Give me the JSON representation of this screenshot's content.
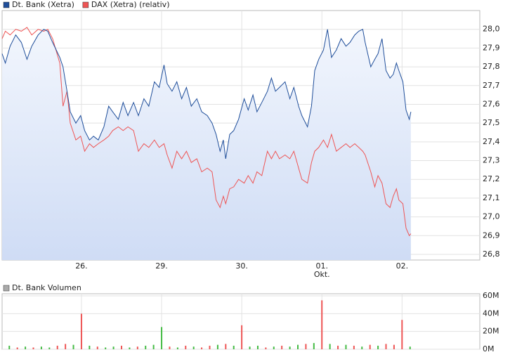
{
  "chart_data": [
    {
      "type": "line",
      "x": [
        -0.99,
        -0.95,
        -0.89,
        -0.82,
        -0.75,
        -0.68,
        -0.62,
        -0.54,
        -0.47,
        -0.42,
        -0.36,
        -0.27,
        -0.23,
        -0.18,
        -0.14,
        -0.07,
        -0.01,
        0.04,
        0.1,
        0.15,
        0.21,
        0.28,
        0.34,
        0.39,
        0.46,
        0.52,
        0.58,
        0.65,
        0.71,
        0.78,
        0.84,
        0.91,
        0.97,
        1.03,
        1.07,
        1.13,
        1.19,
        1.25,
        1.31,
        1.37,
        1.44,
        1.5,
        1.57,
        1.63,
        1.68,
        1.73,
        1.77,
        1.8,
        1.85,
        1.9,
        1.96,
        2.03,
        2.08,
        2.14,
        2.19,
        2.25,
        2.32,
        2.37,
        2.42,
        2.47,
        2.54,
        2.6,
        2.65,
        2.71,
        2.75,
        2.82,
        2.87,
        2.91,
        2.96,
        3.02,
        3.07,
        3.12,
        3.18,
        3.24,
        3.3,
        3.35,
        3.41,
        3.46,
        3.51,
        3.54,
        3.61,
        3.66,
        3.7,
        3.75,
        3.8,
        3.85,
        3.89,
        3.93,
        3.96,
        4.01,
        4.05,
        4.09,
        4.11
      ],
      "series": [
        {
          "name": "Dt. Bank (Xetra)",
          "color": "#1f4e9a",
          "values": [
            27.87,
            27.82,
            27.91,
            27.97,
            27.93,
            27.84,
            27.91,
            27.97,
            28.0,
            27.99,
            27.93,
            27.85,
            27.8,
            27.67,
            27.56,
            27.5,
            27.54,
            27.46,
            27.41,
            27.43,
            27.41,
            27.48,
            27.59,
            27.56,
            27.52,
            27.61,
            27.54,
            27.61,
            27.54,
            27.63,
            27.59,
            27.72,
            27.69,
            27.81,
            27.71,
            27.67,
            27.72,
            27.63,
            27.69,
            27.59,
            27.63,
            27.56,
            27.54,
            27.5,
            27.44,
            27.35,
            27.41,
            27.31,
            27.44,
            27.46,
            27.52,
            27.63,
            27.57,
            27.65,
            27.56,
            27.61,
            27.67,
            27.74,
            27.67,
            27.69,
            27.72,
            27.63,
            27.69,
            27.59,
            27.54,
            27.48,
            27.59,
            27.78,
            27.84,
            27.89,
            28.0,
            27.85,
            27.89,
            27.95,
            27.91,
            27.93,
            27.97,
            27.99,
            28.0,
            27.93,
            27.8,
            27.84,
            27.87,
            27.95,
            27.78,
            27.74,
            27.76,
            27.82,
            27.78,
            27.72,
            27.57,
            27.52,
            27.56
          ]
        },
        {
          "name": "DAX (Xetra) (relativ)",
          "color": "#ee5555",
          "values": [
            27.95,
            27.99,
            27.97,
            28.0,
            27.99,
            28.01,
            27.97,
            28.0,
            27.99,
            28.0,
            27.95,
            27.82,
            27.59,
            27.67,
            27.5,
            27.41,
            27.43,
            27.35,
            27.39,
            27.37,
            27.39,
            27.41,
            27.43,
            27.46,
            27.48,
            27.46,
            27.48,
            27.46,
            27.35,
            27.39,
            27.37,
            27.41,
            27.37,
            27.39,
            27.33,
            27.26,
            27.35,
            27.31,
            27.35,
            27.29,
            27.31,
            27.24,
            27.26,
            27.24,
            27.09,
            27.05,
            27.11,
            27.07,
            27.15,
            27.16,
            27.2,
            27.18,
            27.22,
            27.18,
            27.24,
            27.22,
            27.35,
            27.31,
            27.35,
            27.31,
            27.33,
            27.31,
            27.35,
            27.26,
            27.2,
            27.18,
            27.29,
            27.35,
            27.37,
            27.41,
            27.37,
            27.44,
            27.35,
            27.37,
            27.39,
            27.37,
            27.39,
            27.37,
            27.35,
            27.33,
            27.24,
            27.16,
            27.22,
            27.18,
            27.07,
            27.05,
            27.11,
            27.15,
            27.09,
            27.07,
            26.94,
            26.9,
            26.91
          ]
        }
      ],
      "xlim": [
        -0.99,
        4.97
      ],
      "xticks": [
        {
          "value": 0,
          "label": "26."
        },
        {
          "value": 1,
          "label": "29."
        },
        {
          "value": 2,
          "label": "30."
        },
        {
          "value": 3,
          "label": "01."
        },
        {
          "value": 4,
          "label": "02."
        }
      ],
      "month_label": "Okt.",
      "ylim": [
        26.77,
        28.1
      ],
      "yticks": [
        {
          "value": 26.8,
          "label": "26,8"
        },
        {
          "value": 26.9,
          "label": "26,9"
        },
        {
          "value": 27.0,
          "label": "27,0"
        },
        {
          "value": 27.1,
          "label": "27,1"
        },
        {
          "value": 27.2,
          "label": "27,2"
        },
        {
          "value": 27.3,
          "label": "27,3"
        },
        {
          "value": 27.4,
          "label": "27,4"
        },
        {
          "value": 27.5,
          "label": "27,5"
        },
        {
          "value": 27.6,
          "label": "27,6"
        },
        {
          "value": 27.7,
          "label": "27,7"
        },
        {
          "value": 27.8,
          "label": "27,8"
        },
        {
          "value": 27.9,
          "label": "27,9"
        },
        {
          "value": 28.0,
          "label": "28,0"
        }
      ],
      "grid": true
    },
    {
      "type": "bar",
      "series": [
        {
          "name": "Dt. Bank Volumen",
          "color": "#aaaaaa",
          "x": [
            -0.9,
            -0.8,
            -0.7,
            -0.6,
            -0.5,
            -0.4,
            -0.3,
            -0.2,
            -0.1,
            0.0,
            0.1,
            0.2,
            0.3,
            0.4,
            0.5,
            0.6,
            0.7,
            0.8,
            0.9,
            1.0,
            1.1,
            1.2,
            1.3,
            1.4,
            1.5,
            1.6,
            1.7,
            1.8,
            1.9,
            2.0,
            2.1,
            2.2,
            2.3,
            2.4,
            2.5,
            2.6,
            2.7,
            2.8,
            2.9,
            3.0,
            3.1,
            3.2,
            3.3,
            3.4,
            3.5,
            3.6,
            3.7,
            3.8,
            3.9,
            4.0,
            4.1
          ],
          "values": [
            4000000,
            2000000,
            3000000,
            2000000,
            3000000,
            2000000,
            4000000,
            6000000,
            5000000,
            40000000,
            4000000,
            3000000,
            2000000,
            3000000,
            4000000,
            2000000,
            3000000,
            4000000,
            5000000,
            25000000,
            3000000,
            2000000,
            4000000,
            3000000,
            2000000,
            4000000,
            5000000,
            6000000,
            4000000,
            27000000,
            3000000,
            4000000,
            2000000,
            3000000,
            4000000,
            3000000,
            5000000,
            6000000,
            7000000,
            55000000,
            6000000,
            4000000,
            5000000,
            4000000,
            3000000,
            5000000,
            4000000,
            6000000,
            5000000,
            33000000,
            3000000
          ],
          "bar_colors": [
            "#44bb44",
            "#ee5555",
            "#44bb44",
            "#ee5555",
            "#44bb44",
            "#44bb44",
            "#ee5555",
            "#ee5555",
            "#44bb44",
            "#ee5555",
            "#44bb44",
            "#ee5555",
            "#44bb44",
            "#44bb44",
            "#ee5555",
            "#44bb44",
            "#ee5555",
            "#44bb44",
            "#44bb44",
            "#44bb44",
            "#ee5555",
            "#44bb44",
            "#ee5555",
            "#44bb44",
            "#ee5555",
            "#ee5555",
            "#44bb44",
            "#ee5555",
            "#44bb44",
            "#ee5555",
            "#44bb44",
            "#44bb44",
            "#ee5555",
            "#44bb44",
            "#ee5555",
            "#44bb44",
            "#44bb44",
            "#ee5555",
            "#44bb44",
            "#ee5555",
            "#44bb44",
            "#ee5555",
            "#44bb44",
            "#ee5555",
            "#44bb44",
            "#ee5555",
            "#44bb44",
            "#ee5555",
            "#ee5555",
            "#ee5555",
            "#44bb44"
          ]
        }
      ],
      "xlim": [
        -0.99,
        4.97
      ],
      "xticks": [
        0,
        1,
        2,
        3,
        4
      ],
      "ylim": [
        0,
        62400000
      ],
      "yticks": [
        {
          "value": 0,
          "label": "0M"
        },
        {
          "value": 20000000,
          "label": "20M"
        },
        {
          "value": 40000000,
          "label": "40M"
        },
        {
          "value": 60000000,
          "label": "60M"
        }
      ],
      "grid": true
    }
  ]
}
